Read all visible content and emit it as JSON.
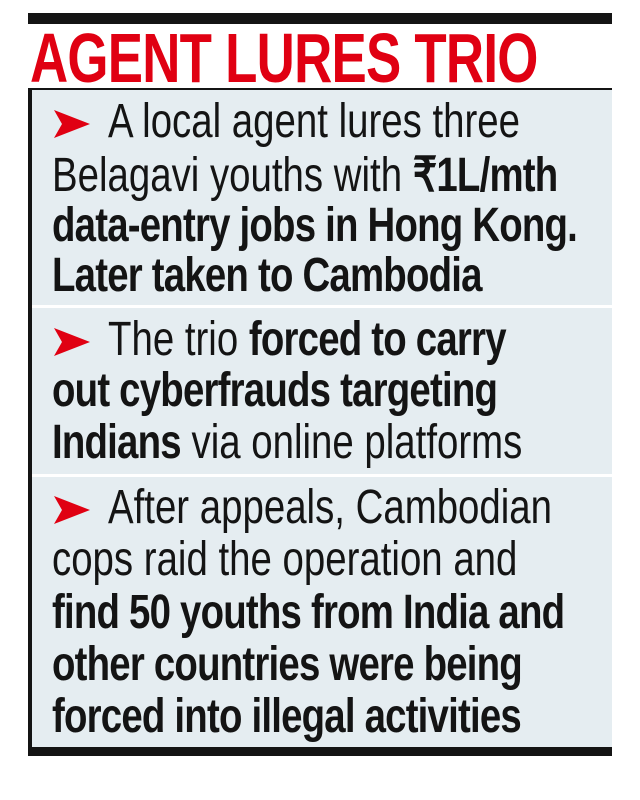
{
  "headline": "AGENT LURES TRIO",
  "colors": {
    "accent": "#e00012",
    "panel": "#e5edf1",
    "text": "#141414"
  },
  "bullet_icon": "red-arrowhead-icon",
  "points": [
    {
      "lines": [
        [
          {
            "text": "A local agent lures three",
            "bold": false
          }
        ],
        [
          {
            "text": "Belagavi youths with ",
            "bold": false
          },
          {
            "text": "₹1L/mth",
            "bold": true
          }
        ],
        [
          {
            "text": "data-entry jobs in Hong Kong.",
            "bold": true
          }
        ],
        [
          {
            "text": "Later taken to Cambodia",
            "bold": true
          }
        ]
      ]
    },
    {
      "lines": [
        [
          {
            "text": "The trio ",
            "bold": false
          },
          {
            "text": "forced to carry",
            "bold": true
          }
        ],
        [
          {
            "text": "out cyberfrauds targeting",
            "bold": true
          }
        ],
        [
          {
            "text": "Indians",
            "bold": true
          },
          {
            "text": " via online platforms",
            "bold": false
          }
        ]
      ]
    },
    {
      "lines": [
        [
          {
            "text": "After appeals, Cambodian",
            "bold": false
          }
        ],
        [
          {
            "text": "cops raid the operation and",
            "bold": false
          }
        ],
        [
          {
            "text": "find 50 youths from India and",
            "bold": true
          }
        ],
        [
          {
            "text": "other countries were being",
            "bold": true
          }
        ],
        [
          {
            "text": "forced into illegal activities",
            "bold": true
          }
        ]
      ]
    }
  ]
}
